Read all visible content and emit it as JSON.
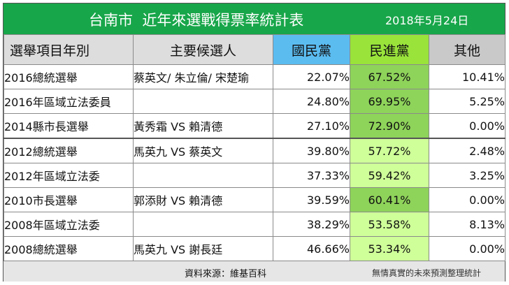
{
  "title": "台南市  近年來選戰得票率統計表",
  "date": "2018年5月24日",
  "headers": {
    "item": "選舉項目年別",
    "candidates": "主要候選人",
    "kmt": "國民黨",
    "dpp": "民進黨",
    "other": "其他"
  },
  "rows": [
    {
      "item": "2016總統選舉",
      "candidates": "蔡英文/ 朱立倫/ 宋楚瑜",
      "kmt": "22.07%",
      "dpp": "67.52%",
      "other": "10.41%"
    },
    {
      "item": "2016年區域立法委員",
      "candidates": "",
      "kmt": "24.80%",
      "dpp": "69.95%",
      "other": "5.25%"
    },
    {
      "item": "2014縣市長選舉",
      "candidates": "黃秀霜 VS 賴清德",
      "kmt": "27.10%",
      "dpp": "72.90%",
      "other": "0.00%"
    },
    {
      "item": "2012總統選舉",
      "candidates": "馬英九 VS 蔡英文",
      "kmt": "39.80%",
      "dpp": "57.72%",
      "other": "2.48%"
    },
    {
      "item": "2012年區域立法委",
      "candidates": "",
      "kmt": "37.33%",
      "dpp": "59.42%",
      "other": "3.25%"
    },
    {
      "item": "2010市長選舉",
      "candidates": "郭添財 VS 賴清德",
      "kmt": "39.59%",
      "dpp": "60.41%",
      "other": "0.00%"
    },
    {
      "item": "2008年區域立法委",
      "candidates": "",
      "kmt": "38.29%",
      "dpp": "53.58%",
      "other": "8.13%"
    },
    {
      "item": "2008總統選舉",
      "candidates": "馬英九 VS 謝長廷",
      "kmt": "46.66%",
      "dpp": "53.34%",
      "other": "0.00%"
    }
  ],
  "footer": {
    "source": "資料來源：維基百科",
    "note": "無情真實的未來預測整理統計"
  },
  "colors": {
    "title_bg": "#18a64a",
    "kmt_header": "#5bbcf0",
    "dpp_header": "#99e33b",
    "dpp_high": "#8ed35a",
    "dpp_low": "#cfff99"
  }
}
